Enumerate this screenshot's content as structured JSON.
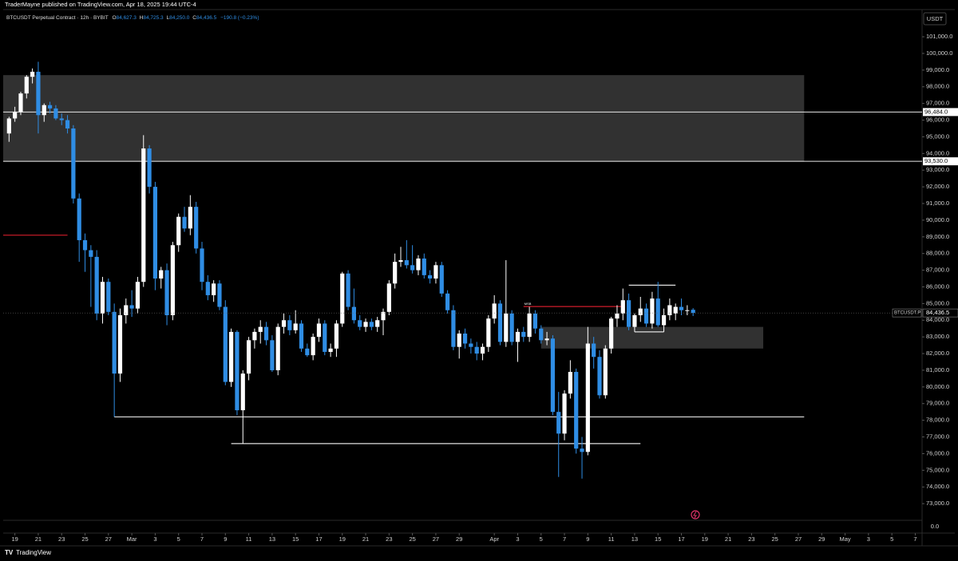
{
  "header": {
    "byline": "TraderMayne published on TradingView.com, Apr 18, 2025 19:44 UTC-4",
    "symbol": "BTCUSDT Perpetual Contract · 12h · BYBIT",
    "ohlc_legend": [
      {
        "key": "O",
        "value": "84,627.3"
      },
      {
        "key": "H",
        "value": "84,725.3"
      },
      {
        "key": "L",
        "value": "84,250.0"
      },
      {
        "key": "C",
        "value": "84,436.5"
      }
    ],
    "change": "−190.8 (−0.23%)",
    "currency": "USDT",
    "brand": "TradingView"
  },
  "chart_data": {
    "type": "candlestick",
    "up_color": "#ffffff",
    "down_color": "#2f8de4",
    "grid": false,
    "x": [
      "2025-02-18 12:00",
      "2025-02-19 00:00",
      "2025-02-19 12:00",
      "2025-02-20 00:00",
      "2025-02-20 12:00",
      "2025-02-21 00:00",
      "2025-02-21 12:00",
      "2025-02-22 00:00",
      "2025-02-22 12:00",
      "2025-02-23 00:00",
      "2025-02-23 12:00",
      "2025-02-24 00:00",
      "2025-02-24 12:00",
      "2025-02-25 00:00",
      "2025-02-25 12:00",
      "2025-02-26 00:00",
      "2025-02-26 12:00",
      "2025-02-27 00:00",
      "2025-02-27 12:00",
      "2025-02-28 00:00",
      "2025-02-28 12:00",
      "2025-03-01 00:00",
      "2025-03-01 12:00",
      "2025-03-02 00:00",
      "2025-03-02 12:00",
      "2025-03-03 00:00",
      "2025-03-03 12:00",
      "2025-03-04 00:00",
      "2025-03-04 12:00",
      "2025-03-05 00:00",
      "2025-03-05 12:00",
      "2025-03-06 00:00",
      "2025-03-06 12:00",
      "2025-03-07 00:00",
      "2025-03-07 12:00",
      "2025-03-08 00:00",
      "2025-03-08 12:00",
      "2025-03-09 00:00",
      "2025-03-09 12:00",
      "2025-03-10 00:00",
      "2025-03-10 12:00",
      "2025-03-11 00:00",
      "2025-03-11 12:00",
      "2025-03-12 00:00",
      "2025-03-12 12:00",
      "2025-03-13 00:00",
      "2025-03-13 12:00",
      "2025-03-14 00:00",
      "2025-03-14 12:00",
      "2025-03-15 00:00",
      "2025-03-15 12:00",
      "2025-03-16 00:00",
      "2025-03-16 12:00",
      "2025-03-17 00:00",
      "2025-03-17 12:00",
      "2025-03-18 00:00",
      "2025-03-18 12:00",
      "2025-03-19 00:00",
      "2025-03-19 12:00",
      "2025-03-20 00:00",
      "2025-03-20 12:00",
      "2025-03-21 00:00",
      "2025-03-21 12:00",
      "2025-03-22 00:00",
      "2025-03-22 12:00",
      "2025-03-23 00:00",
      "2025-03-23 12:00",
      "2025-03-24 00:00",
      "2025-03-24 12:00",
      "2025-03-25 00:00",
      "2025-03-25 12:00",
      "2025-03-26 00:00",
      "2025-03-26 12:00",
      "2025-03-27 00:00",
      "2025-03-27 12:00",
      "2025-03-28 00:00",
      "2025-03-28 12:00",
      "2025-03-29 00:00",
      "2025-03-29 12:00",
      "2025-03-30 00:00",
      "2025-03-30 12:00",
      "2025-03-31 00:00",
      "2025-03-31 12:00",
      "2025-04-01 00:00",
      "2025-04-01 12:00",
      "2025-04-02 00:00",
      "2025-04-02 12:00",
      "2025-04-03 00:00",
      "2025-04-03 12:00",
      "2025-04-04 00:00",
      "2025-04-04 12:00",
      "2025-04-05 00:00",
      "2025-04-05 12:00",
      "2025-04-06 00:00",
      "2025-04-06 12:00",
      "2025-04-07 00:00",
      "2025-04-07 12:00",
      "2025-04-08 00:00",
      "2025-04-08 12:00",
      "2025-04-09 00:00",
      "2025-04-09 12:00",
      "2025-04-10 00:00",
      "2025-04-10 12:00",
      "2025-04-11 00:00",
      "2025-04-11 12:00",
      "2025-04-12 00:00",
      "2025-04-12 12:00",
      "2025-04-13 00:00",
      "2025-04-13 12:00",
      "2025-04-14 00:00",
      "2025-04-14 12:00",
      "2025-04-15 00:00",
      "2025-04-15 12:00",
      "2025-04-16 00:00",
      "2025-04-16 12:00",
      "2025-04-17 00:00",
      "2025-04-17 12:00",
      "2025-04-18 00:00"
    ],
    "open": [
      95200,
      96100,
      96500,
      97600,
      98600,
      98900,
      96300,
      96900,
      96700,
      96100,
      96000,
      95500,
      91300,
      88800,
      88200,
      87800,
      84400,
      86300,
      84500,
      80800,
      84300,
      84900,
      84700,
      86300,
      94300,
      92000,
      86500,
      87000,
      84300,
      88500,
      90200,
      89500,
      90800,
      88300,
      86300,
      85500,
      86200,
      84800,
      80300,
      83300,
      78600,
      80800,
      82800,
      83300,
      83600,
      82800,
      81000,
      83600,
      84000,
      83400,
      83800,
      82300,
      81900,
      83000,
      83800,
      82100,
      82300,
      83800,
      86800,
      84800,
      84000,
      83600,
      83900,
      83600,
      84000,
      84500,
      86200,
      87500,
      87600,
      87300,
      87000,
      87700,
      86700,
      86500,
      87300,
      85600,
      84600,
      82400,
      83200,
      82600,
      82400,
      82000,
      82400,
      84100,
      85000,
      82700,
      84400,
      82700,
      83300,
      83000,
      84400,
      83500,
      82800,
      82900,
      78500,
      77200,
      79600,
      80900,
      76300,
      76100,
      82600,
      81800,
      79500,
      82300,
      84100,
      84400,
      85200,
      83600,
      84300,
      84700,
      83800,
      85300,
      83700,
      84300,
      84400,
      84800,
      84600,
      84627.3
    ],
    "high": [
      96200,
      96800,
      97700,
      98700,
      99100,
      99500,
      97000,
      97100,
      96900,
      96400,
      96300,
      95700,
      91600,
      89200,
      88500,
      88200,
      86600,
      86500,
      85000,
      84700,
      85300,
      85800,
      86600,
      95100,
      94500,
      92300,
      87200,
      87400,
      88700,
      90400,
      90800,
      91500,
      91100,
      88700,
      86700,
      86400,
      86400,
      85200,
      83500,
      83400,
      81000,
      83000,
      83500,
      84000,
      83900,
      83100,
      83800,
      84400,
      84300,
      84600,
      84000,
      82600,
      83200,
      84100,
      84000,
      82600,
      84000,
      86900,
      87000,
      85900,
      84300,
      84100,
      84100,
      84200,
      84700,
      86400,
      88000,
      88400,
      88800,
      88500,
      87900,
      88000,
      87000,
      87500,
      87500,
      85800,
      84900,
      83400,
      83500,
      82900,
      82700,
      82600,
      84300,
      85500,
      85200,
      87600,
      84600,
      83500,
      83600,
      84800,
      84600,
      83700,
      83300,
      83100,
      79700,
      79800,
      81600,
      81100,
      77000,
      83600,
      83000,
      82200,
      82500,
      84200,
      84900,
      85900,
      85600,
      84400,
      85400,
      85000,
      85700,
      86300,
      84700,
      85300,
      85000,
      85300,
      84900,
      84725.3
    ],
    "low": [
      94700,
      95900,
      96300,
      97300,
      98200,
      95200,
      95900,
      96400,
      96000,
      95700,
      95200,
      91000,
      87500,
      86900,
      84800,
      84000,
      83800,
      84300,
      78200,
      80300,
      83800,
      84200,
      84400,
      86000,
      91600,
      85800,
      85900,
      83700,
      84000,
      88100,
      89300,
      89100,
      88000,
      85800,
      85200,
      85100,
      84600,
      80100,
      80000,
      78300,
      76600,
      80400,
      82300,
      82600,
      82500,
      80900,
      80700,
      83200,
      83100,
      83200,
      82100,
      81800,
      81600,
      82700,
      81900,
      81800,
      81800,
      83600,
      84600,
      83800,
      83400,
      83300,
      83400,
      83300,
      83100,
      84300,
      85900,
      87200,
      87100,
      86800,
      86700,
      86500,
      86200,
      86200,
      85400,
      84400,
      82200,
      81700,
      82300,
      82000,
      81600,
      81600,
      82100,
      83800,
      82500,
      82400,
      82500,
      81500,
      82700,
      82700,
      83200,
      82600,
      82500,
      78300,
      74600,
      76800,
      79300,
      76000,
      74500,
      75900,
      81100,
      79300,
      79300,
      82000,
      83600,
      84000,
      83400,
      83300,
      83900,
      83600,
      83500,
      83600,
      83300,
      84000,
      84000,
      84300,
      84300,
      84250
    ],
    "close": [
      96100,
      96500,
      97600,
      98600,
      98900,
      96300,
      96900,
      96700,
      96100,
      96000,
      95500,
      91300,
      88800,
      88200,
      87800,
      84400,
      86300,
      84500,
      80800,
      84300,
      84900,
      84700,
      86300,
      94300,
      92000,
      86500,
      87000,
      84300,
      88500,
      90200,
      89500,
      90800,
      88300,
      86300,
      85500,
      86200,
      84800,
      80300,
      83300,
      78600,
      80800,
      82800,
      83300,
      83600,
      82800,
      81000,
      83600,
      84000,
      83400,
      83800,
      82300,
      81900,
      83000,
      83800,
      82100,
      82300,
      83800,
      86800,
      84800,
      84000,
      83600,
      83900,
      83600,
      84000,
      84500,
      86200,
      87500,
      87600,
      87300,
      87000,
      87700,
      86700,
      86500,
      87300,
      85600,
      84600,
      82400,
      83200,
      82600,
      82400,
      82000,
      82400,
      84100,
      85000,
      82700,
      84400,
      82700,
      83300,
      83000,
      84400,
      83500,
      82800,
      82900,
      78500,
      77200,
      79600,
      80900,
      76300,
      76100,
      82600,
      81800,
      79500,
      82300,
      84100,
      84400,
      85200,
      83600,
      84300,
      84700,
      83800,
      85300,
      83700,
      84300,
      84900,
      84800,
      84600,
      84600,
      84436.5
    ],
    "xlim": [
      "2025-02-18 00:00",
      "2025-05-07 14:00"
    ],
    "xticks": [
      {
        "value": "2025-02-19 00:00",
        "label": "19"
      },
      {
        "value": "2025-02-21 00:00",
        "label": "21"
      },
      {
        "value": "2025-02-23 00:00",
        "label": "23"
      },
      {
        "value": "2025-02-25 00:00",
        "label": "25"
      },
      {
        "value": "2025-02-27 00:00",
        "label": "27"
      },
      {
        "value": "2025-03-01 00:00",
        "label": "Mar"
      },
      {
        "value": "2025-03-03 00:00",
        "label": "3"
      },
      {
        "value": "2025-03-05 00:00",
        "label": "5"
      },
      {
        "value": "2025-03-07 00:00",
        "label": "7"
      },
      {
        "value": "2025-03-09 00:00",
        "label": "9"
      },
      {
        "value": "2025-03-11 00:00",
        "label": "11"
      },
      {
        "value": "2025-03-13 00:00",
        "label": "13"
      },
      {
        "value": "2025-03-15 00:00",
        "label": "15"
      },
      {
        "value": "2025-03-17 00:00",
        "label": "17"
      },
      {
        "value": "2025-03-19 00:00",
        "label": "19"
      },
      {
        "value": "2025-03-21 00:00",
        "label": "21"
      },
      {
        "value": "2025-03-23 00:00",
        "label": "23"
      },
      {
        "value": "2025-03-25 00:00",
        "label": "25"
      },
      {
        "value": "2025-03-27 00:00",
        "label": "27"
      },
      {
        "value": "2025-03-29 00:00",
        "label": "29"
      },
      {
        "value": "2025-04-01 00:00",
        "label": "Apr"
      },
      {
        "value": "2025-04-03 00:00",
        "label": "3"
      },
      {
        "value": "2025-04-05 00:00",
        "label": "5"
      },
      {
        "value": "2025-04-07 00:00",
        "label": "7"
      },
      {
        "value": "2025-04-09 00:00",
        "label": "9"
      },
      {
        "value": "2025-04-11 00:00",
        "label": "11"
      },
      {
        "value": "2025-04-13 00:00",
        "label": "13"
      },
      {
        "value": "2025-04-15 00:00",
        "label": "15"
      },
      {
        "value": "2025-04-17 00:00",
        "label": "17"
      },
      {
        "value": "2025-04-19 00:00",
        "label": "19"
      },
      {
        "value": "2025-04-21 00:00",
        "label": "21"
      },
      {
        "value": "2025-04-23 00:00",
        "label": "23"
      },
      {
        "value": "2025-04-25 00:00",
        "label": "25"
      },
      {
        "value": "2025-04-27 00:00",
        "label": "27"
      },
      {
        "value": "2025-04-29 00:00",
        "label": "29"
      },
      {
        "value": "2025-05-01 00:00",
        "label": "May"
      },
      {
        "value": "2025-05-03 00:00",
        "label": "3"
      },
      {
        "value": "2025-05-05 00:00",
        "label": "5"
      },
      {
        "value": "2025-05-07 00:00",
        "label": "7"
      }
    ],
    "ylim": [
      72000,
      102630
    ],
    "yticks": [
      {
        "value": 73000,
        "label": "73,000.0"
      },
      {
        "value": 74000,
        "label": "74,000.0"
      },
      {
        "value": 75000,
        "label": "75,000.0"
      },
      {
        "value": 76000,
        "label": "76,000.0"
      },
      {
        "value": 77000,
        "label": "77,000.0"
      },
      {
        "value": 78000,
        "label": "78,000.0"
      },
      {
        "value": 79000,
        "label": "79,000.0"
      },
      {
        "value": 80000,
        "label": "80,000.0"
      },
      {
        "value": 81000,
        "label": "81,000.0"
      },
      {
        "value": 82000,
        "label": "82,000.0"
      },
      {
        "value": 83000,
        "label": "83,000.0"
      },
      {
        "value": 84000,
        "label": "84,000.0"
      },
      {
        "value": 85000,
        "label": "85,000.0"
      },
      {
        "value": 86000,
        "label": "86,000.0"
      },
      {
        "value": 87000,
        "label": "87,000.0"
      },
      {
        "value": 88000,
        "label": "88,000.0"
      },
      {
        "value": 89000,
        "label": "89,000.0"
      },
      {
        "value": 90000,
        "label": "90,000.0"
      },
      {
        "value": 91000,
        "label": "91,000.0"
      },
      {
        "value": 92000,
        "label": "92,000.0"
      },
      {
        "value": 93000,
        "label": "93,000.0"
      },
      {
        "value": 94000,
        "label": "94,000.0"
      },
      {
        "value": 95000,
        "label": "95,000.0"
      },
      {
        "value": 96000,
        "label": "96,000.0"
      },
      {
        "value": 97000,
        "label": "97,000.0"
      },
      {
        "value": 98000,
        "label": "98,000.0"
      },
      {
        "value": 99000,
        "label": "99,000.0"
      },
      {
        "value": 100000,
        "label": "100,000.0"
      },
      {
        "value": 101000,
        "label": "101,000.0"
      }
    ],
    "sub_pane_label": "0.0",
    "zones": [
      {
        "start": "2025-02-18 00:00",
        "end": "2025-04-27 12:00",
        "top": 98700,
        "bottom": 93500
      },
      {
        "start": "2025-04-05 00:00",
        "end": "2025-04-24 00:00",
        "top": 83600,
        "bottom": 82300
      }
    ],
    "axis_levels": [
      {
        "value": 96484,
        "label": "96,484.0"
      },
      {
        "value": 93530,
        "label": "93,530.0"
      }
    ],
    "lines": [
      {
        "value": 78200,
        "start": "2025-02-27 12:00",
        "end": "2025-04-27 12:00",
        "color": "#e0e0e0"
      },
      {
        "value": 76600,
        "start": "2025-03-09 12:00",
        "end": "2025-04-13 12:00",
        "color": "#e0e0e0"
      },
      {
        "value": 89100,
        "start": "2025-02-18 00:00",
        "end": "2025-02-23 12:00",
        "color": "#d01c2a"
      },
      {
        "value": 84820,
        "start": "2025-04-03 12:00",
        "end": "2025-04-12 00:00",
        "color": "#d01c2a",
        "label": "MSB"
      },
      {
        "value": 86100,
        "start": "2025-04-12 12:00",
        "end": "2025-04-16 12:00",
        "color": "#e0e0e0"
      },
      {
        "value": 83300,
        "start": "2025-04-13 00:00",
        "end": "2025-04-15 12:00",
        "color": "#e0e0e0"
      }
    ],
    "price_label": {
      "symbol": "BTCUSDT.P",
      "value": 84436.5,
      "label": "84,436.5"
    }
  }
}
